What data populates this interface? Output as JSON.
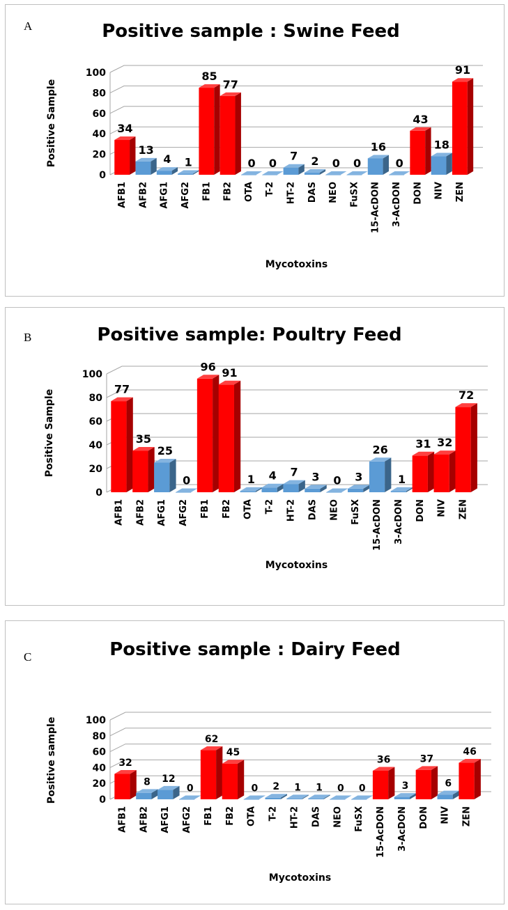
{
  "colors": {
    "highlight": "#ff0000",
    "normal": "#5b9bd5"
  },
  "chart_data": [
    {
      "type": "bar",
      "panel": "A",
      "title": "Positive sample : Swine Feed",
      "xlabel": "Mycotoxins",
      "ylabel": "Positive Sample",
      "ylim": [
        0,
        100
      ],
      "yticks": [
        "0",
        "20",
        "40",
        "60",
        "80",
        "100"
      ],
      "grid": true,
      "categories": [
        "AFB1",
        "AFB2",
        "AFG1",
        "AFG2",
        "FB1",
        "FB2",
        "OTA",
        "T-2",
        "HT-2",
        "DAS",
        "NEO",
        "FuSX",
        "15-AcDON",
        "3-AcDON",
        "DON",
        "NIV",
        "ZEN"
      ],
      "values": [
        34,
        13,
        4,
        1,
        85,
        77,
        0,
        0,
        7,
        2,
        0,
        0,
        16,
        0,
        43,
        18,
        91
      ],
      "labels": [
        "34",
        "13",
        "4",
        "1",
        "85",
        "77",
        "0",
        "0",
        "7",
        "2",
        "0",
        "0",
        "16",
        "0",
        "43",
        "18",
        "91"
      ],
      "bar_colors": [
        "red",
        "blue",
        "blue",
        "blue",
        "red",
        "red",
        "blue",
        "blue",
        "blue",
        "blue",
        "blue",
        "blue",
        "blue",
        "blue",
        "red",
        "blue",
        "red"
      ]
    },
    {
      "type": "bar",
      "panel": "B",
      "title": "Positive sample: Poultry Feed",
      "xlabel": "Mycotoxins",
      "ylabel": "Positive Sample",
      "ylim": [
        0,
        100
      ],
      "yticks": [
        "0",
        "20",
        "40",
        "60",
        "80",
        "100"
      ],
      "grid": true,
      "categories": [
        "AFB1",
        "AFB2",
        "AFG1",
        "AFG2",
        "FB1",
        "FB2",
        "OTA",
        "T-2",
        "HT-2",
        "DAS",
        "NEO",
        "FuSX",
        "15-AcDON",
        "3-AcDON",
        "DON",
        "NIV",
        "ZEN"
      ],
      "values": [
        77,
        35,
        25,
        0,
        96,
        91,
        1,
        4,
        7,
        3,
        0,
        3,
        26,
        1,
        31,
        32,
        72
      ],
      "labels": [
        "77",
        "35",
        "25",
        "0",
        "96",
        "91",
        "1",
        "4",
        "7",
        "3",
        "0",
        "3",
        "26",
        "1",
        "31",
        "32",
        "72"
      ],
      "bar_colors": [
        "red",
        "red",
        "blue",
        "blue",
        "red",
        "red",
        "blue",
        "blue",
        "blue",
        "blue",
        "blue",
        "blue",
        "blue",
        "blue",
        "red",
        "red",
        "red"
      ]
    },
    {
      "type": "bar",
      "panel": "C",
      "title": "Positive sample : Dairy Feed",
      "xlabel": "Mycotoxins",
      "ylabel": "Positive sample",
      "ylim": [
        0,
        100
      ],
      "yticks": [
        "0",
        "20",
        "40",
        "60",
        "80",
        "100"
      ],
      "grid": true,
      "categories": [
        "AFB1",
        "AFB2",
        "AFG1",
        "AFG2",
        "FB1",
        "FB2",
        "OTA",
        "T-2",
        "HT-2",
        "DAS",
        "NEO",
        "FuSX",
        "15-AcDON",
        "3-AcDON",
        "DON",
        "NIV",
        "ZEN"
      ],
      "values": [
        32,
        8,
        12,
        0,
        62,
        45,
        0,
        2,
        1,
        1,
        0,
        0,
        36,
        3,
        37,
        6,
        46
      ],
      "labels": [
        "32",
        "8",
        "12",
        "0",
        "62",
        "45",
        "0",
        "2",
        "1",
        "1",
        "0",
        "0",
        "36",
        "3",
        "37",
        "6",
        "46"
      ],
      "bar_colors": [
        "red",
        "blue",
        "blue",
        "blue",
        "red",
        "red",
        "blue",
        "blue",
        "blue",
        "blue",
        "blue",
        "blue",
        "red",
        "blue",
        "red",
        "blue",
        "red"
      ]
    }
  ]
}
